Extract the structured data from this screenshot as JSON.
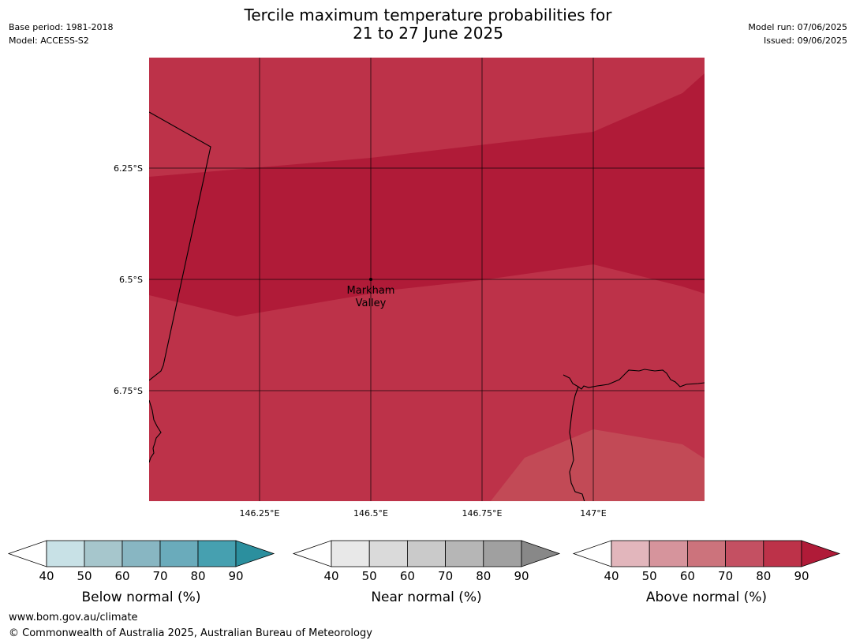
{
  "header": {
    "title_line1": "Tercile maximum temperature probabilities for",
    "title_line2": "21 to 27 June 2025",
    "base_period": "Base period: 1981-2018",
    "model": "Model: ACCESS-S2",
    "model_run": "Model run: 07/06/2025",
    "issued": "Issued: 09/06/2025"
  },
  "map": {
    "lon_labels": [
      "146.25°E",
      "146.5°E",
      "146.75°E",
      "147°E"
    ],
    "lat_labels": [
      "6.25°S",
      "6.5°S",
      "6.75°S"
    ],
    "place_line1": "Markham",
    "place_line2": "Valley",
    "colors": {
      "above_70_80": "#bd3249",
      "above_80_90": "#b01b38",
      "above_60_70": "#c24a56",
      "coastline": "#000000",
      "grid": "#000000"
    }
  },
  "colorbars": [
    {
      "title": "Below normal (%)",
      "ticks": [
        "40",
        "50",
        "60",
        "70",
        "80",
        "90"
      ],
      "colors": [
        "#c8e1e6",
        "#a6c6cc",
        "#88b6c2",
        "#6aabbb",
        "#46a0b0",
        "#2b8f9e"
      ]
    },
    {
      "title": "Near normal (%)",
      "ticks": [
        "40",
        "50",
        "60",
        "70",
        "80",
        "90"
      ],
      "colors": [
        "#e8e8e8",
        "#dadada",
        "#cacaca",
        "#b6b6b6",
        "#a0a0a0",
        "#888888"
      ]
    },
    {
      "title": "Above normal (%)",
      "ticks": [
        "40",
        "50",
        "60",
        "70",
        "80",
        "90"
      ],
      "colors": [
        "#e2b6bc",
        "#d6949c",
        "#cc737c",
        "#c45062",
        "#bd3249",
        "#b01b38"
      ]
    }
  ],
  "footer": {
    "url": "www.bom.gov.au/climate",
    "copyright": "© Commonwealth of Australia 2025, Australian Bureau of Meteorology"
  }
}
